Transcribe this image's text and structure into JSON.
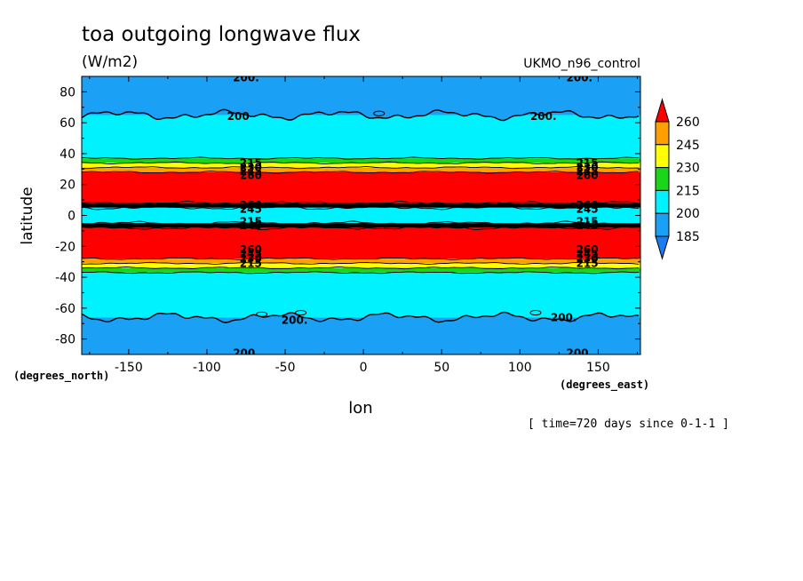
{
  "chart_data": {
    "type": "heatmap",
    "title": "toa outgoing longwave flux",
    "units": "(W/m2)",
    "dataset": "UKMO_n96_control",
    "xlabel": "lon",
    "ylabel": "latitude",
    "x_units": "(degrees_east)",
    "y_units": "(degrees_north)",
    "footnote": "[ time=720 days since 0-1-1 ]",
    "xlim": [
      -180,
      177
    ],
    "ylim": [
      -90,
      90
    ],
    "x_ticks": [
      -150,
      -100,
      -50,
      0,
      50,
      100,
      150
    ],
    "x_tick_labels": [
      "-150",
      "-100",
      "-50",
      "0",
      "50",
      "100",
      "150"
    ],
    "y_ticks": [
      80,
      60,
      40,
      20,
      0,
      -20,
      -40,
      -60,
      -80
    ],
    "y_tick_labels": [
      "80",
      "60",
      "40",
      "20",
      "0",
      "-20",
      "-40",
      "-60",
      "-80"
    ],
    "colorbar": {
      "levels": [
        185,
        200,
        215,
        230,
        245,
        260
      ],
      "labels": [
        "185",
        "200",
        "215",
        "230",
        "245",
        "260"
      ],
      "colors": {
        "below_185": "#1a7cf0",
        "185_200": "#1aa0f5",
        "200_215": "#00f2ff",
        "215_230": "#1ad61a",
        "230_245": "#ffff00",
        "245_260": "#ff9f00",
        "above_260": "#ff0000"
      }
    },
    "zonal_bands": [
      {
        "lat_from": 65,
        "lat_to": 90,
        "value": "185-200"
      },
      {
        "lat_from": 37,
        "lat_to": 65,
        "value": "200-215"
      },
      {
        "lat_from": 34,
        "lat_to": 37,
        "value": "215-230"
      },
      {
        "lat_from": 31,
        "lat_to": 34,
        "value": "230-245"
      },
      {
        "lat_from": 28,
        "lat_to": 31,
        "value": "245-260"
      },
      {
        "lat_from": 8,
        "lat_to": 28,
        "value": ">260"
      },
      {
        "lat_from": 5,
        "lat_to": 8,
        "value": "contour cluster"
      },
      {
        "lat_from": -5,
        "lat_to": 5,
        "value": "200-215"
      },
      {
        "lat_from": -8,
        "lat_to": -5,
        "value": "contour cluster"
      },
      {
        "lat_from": -28,
        "lat_to": -8,
        "value": ">260"
      },
      {
        "lat_from": -31,
        "lat_to": -28,
        "value": "245-260"
      },
      {
        "lat_from": -34,
        "lat_to": -31,
        "value": "230-245"
      },
      {
        "lat_from": -37,
        "lat_to": -34,
        "value": "215-230"
      },
      {
        "lat_from": -66,
        "lat_to": -37,
        "value": "200-215"
      },
      {
        "lat_from": -90,
        "lat_to": -66,
        "value": "185-200"
      }
    ],
    "contour_labels": [
      {
        "text": "200.",
        "lon": -75,
        "lat": 89
      },
      {
        "text": "200.",
        "lon": 138,
        "lat": 89
      },
      {
        "text": "200",
        "lon": -80,
        "lat": 64
      },
      {
        "text": "200.",
        "lon": 115,
        "lat": 64
      },
      {
        "text": "215",
        "lon": -72,
        "lat": 34
      },
      {
        "text": "215",
        "lon": 143,
        "lat": 34
      },
      {
        "text": "230",
        "lon": -72,
        "lat": 31
      },
      {
        "text": "230",
        "lon": 143,
        "lat": 31
      },
      {
        "text": "245",
        "lon": -72,
        "lat": 28.5
      },
      {
        "text": "245",
        "lon": 143,
        "lat": 28.5
      },
      {
        "text": "260",
        "lon": -72,
        "lat": 26
      },
      {
        "text": "260",
        "lon": 143,
        "lat": 26
      },
      {
        "text": "260",
        "lon": -72,
        "lat": 6.5
      },
      {
        "text": "260",
        "lon": 143,
        "lat": 6.5
      },
      {
        "text": "245",
        "lon": -72,
        "lat": 4
      },
      {
        "text": "245",
        "lon": 143,
        "lat": 4
      },
      {
        "text": "215",
        "lon": -72,
        "lat": -4
      },
      {
        "text": "215",
        "lon": 143,
        "lat": -4
      },
      {
        "text": "245",
        "lon": -72,
        "lat": -6.5
      },
      {
        "text": "245",
        "lon": 143,
        "lat": -6.5
      },
      {
        "text": "260",
        "lon": -72,
        "lat": -22
      },
      {
        "text": "260",
        "lon": 143,
        "lat": -22
      },
      {
        "text": "245",
        "lon": -72,
        "lat": -25
      },
      {
        "text": "245",
        "lon": 143,
        "lat": -25
      },
      {
        "text": "230",
        "lon": -72,
        "lat": -28
      },
      {
        "text": "230",
        "lon": 143,
        "lat": -28
      },
      {
        "text": "215",
        "lon": -72,
        "lat": -31
      },
      {
        "text": "215",
        "lon": 143,
        "lat": -31
      },
      {
        "text": "200.",
        "lon": -44,
        "lat": -68
      },
      {
        "text": "200.",
        "lon": 128,
        "lat": -66
      },
      {
        "text": "200.",
        "lon": -75,
        "lat": -89
      },
      {
        "text": "200.",
        "lon": 138,
        "lat": -89
      }
    ],
    "grid": false,
    "legend": "colorbar right"
  }
}
